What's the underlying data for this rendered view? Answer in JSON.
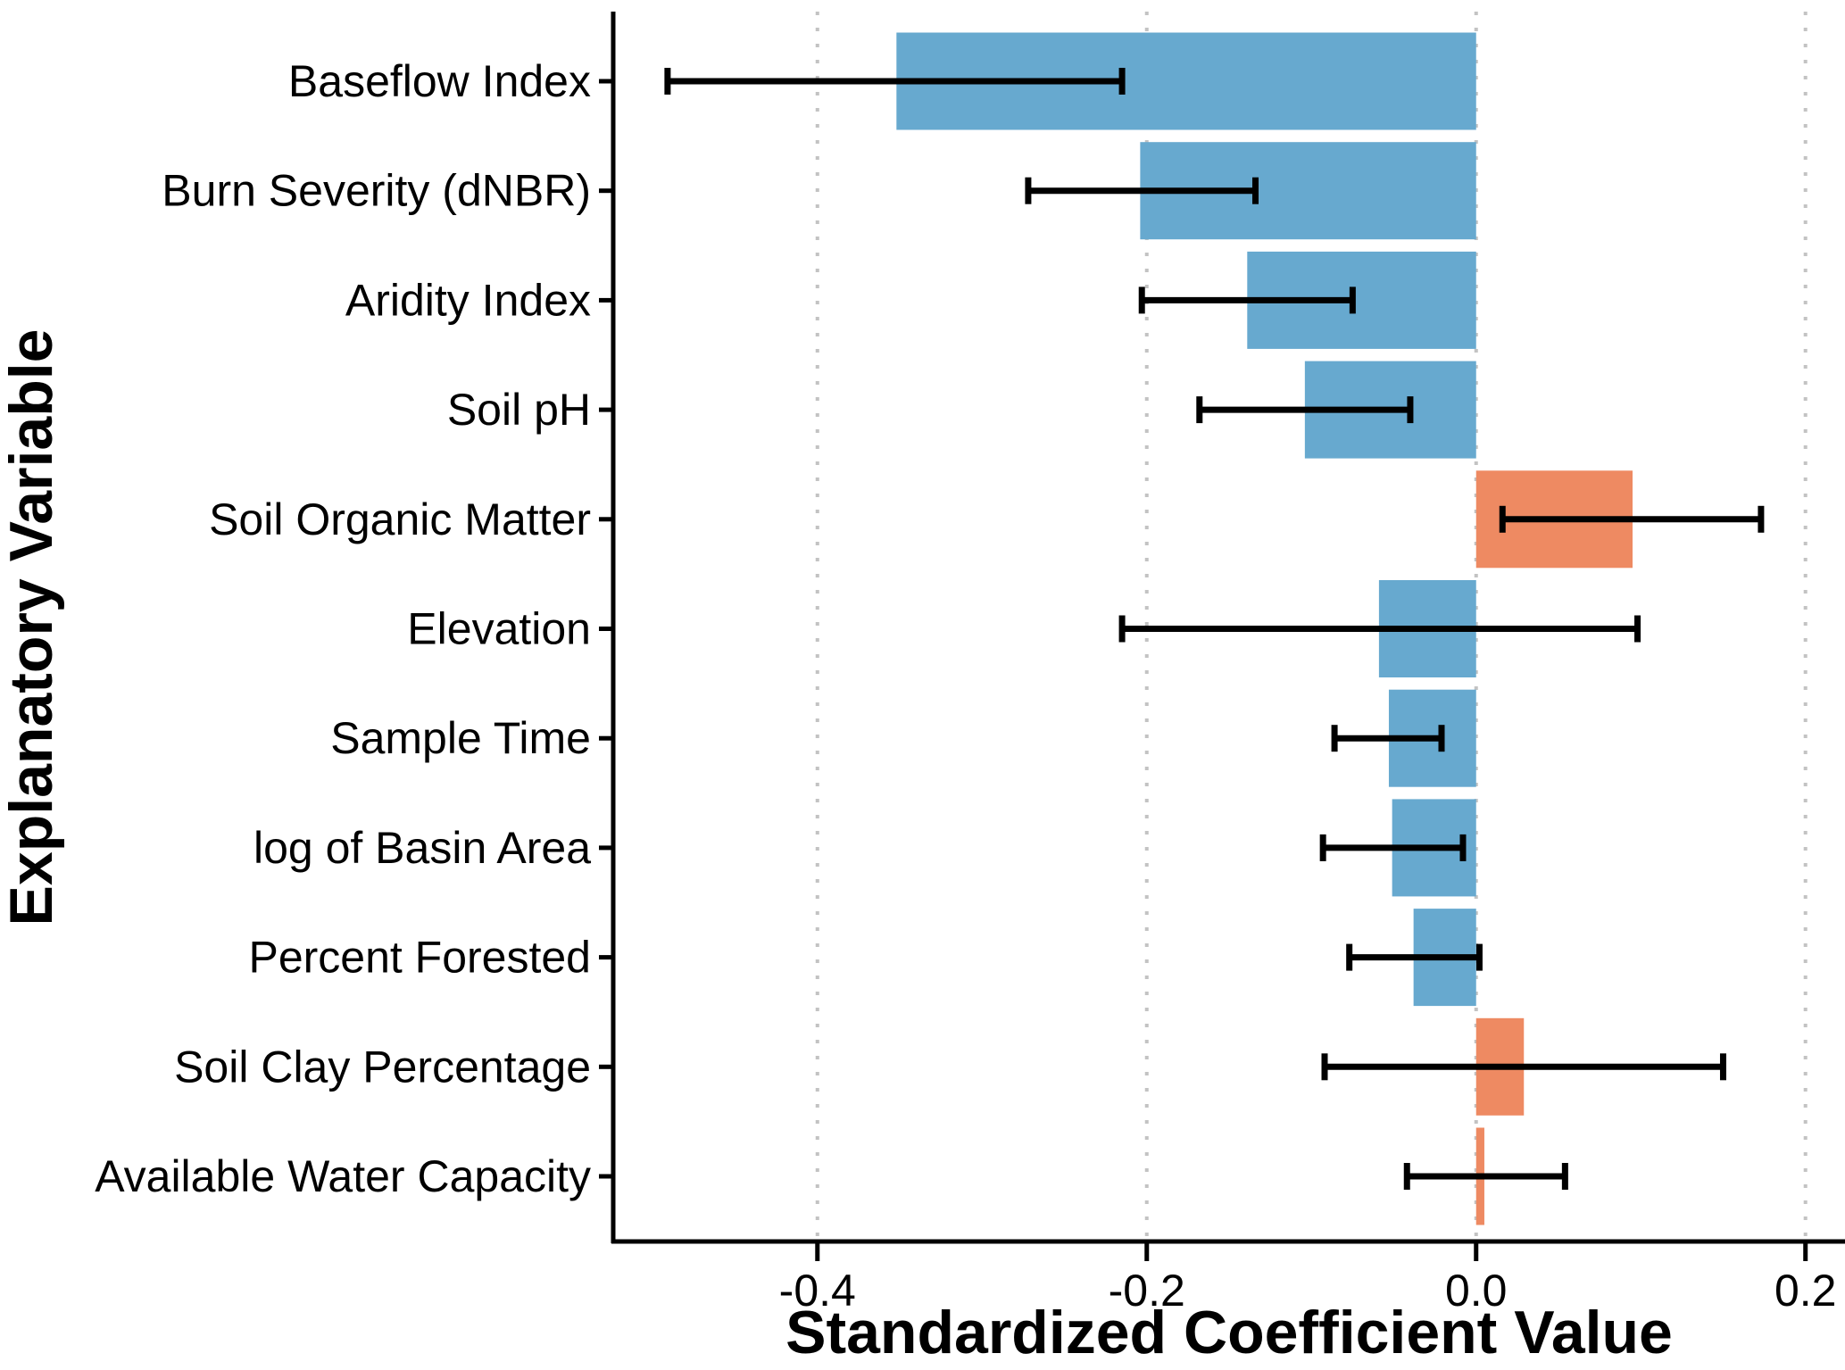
{
  "chart_data": {
    "type": "bar",
    "orientation": "horizontal",
    "title": "",
    "xlabel": "Standardized Coefficient Value",
    "ylabel": "Explanatory Variable",
    "categories": [
      "Baseflow Index",
      "Burn Severity (dNBR)",
      "Aridity Index",
      "Soil pH",
      "Soil Organic Matter",
      "Elevation",
      "Sample Time",
      "log of Basin Area",
      "Percent Forested",
      "Soil Clay Percentage",
      "Available Water Capacity"
    ],
    "series": [
      {
        "name": "standardized_coefficient",
        "values": [
          -0.352,
          -0.204,
          -0.139,
          -0.104,
          0.095,
          -0.059,
          -0.053,
          -0.051,
          -0.038,
          0.029,
          0.005
        ]
      }
    ],
    "error_low": [
      -0.491,
      -0.272,
      -0.203,
      -0.168,
      0.016,
      -0.215,
      -0.086,
      -0.093,
      -0.077,
      -0.092,
      -0.042
    ],
    "error_high": [
      -0.215,
      -0.134,
      -0.075,
      -0.04,
      0.173,
      0.098,
      -0.021,
      -0.008,
      0.002,
      0.15,
      0.054
    ],
    "xlim": [
      -0.524,
      0.224
    ],
    "xticks": [
      -0.4,
      -0.2,
      0.0,
      0.2
    ],
    "xtick_labels": [
      "-0.4",
      "-0.2",
      "0.0",
      "0.2"
    ],
    "grid": {
      "axis": "x",
      "style": "dotted",
      "color": "#c3c3c3"
    },
    "legend": null,
    "colors": {
      "negative_bar": "#67a9cf",
      "positive_bar": "#ee8a62",
      "error_bar": "#000000",
      "axis": "#000000",
      "background": "#ffffff"
    }
  }
}
